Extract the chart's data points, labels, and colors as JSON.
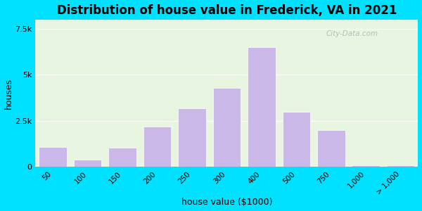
{
  "title": "Distribution of house value in Frederick, VA in 2021",
  "xlabel": "house value ($1000)",
  "ylabel": "houses",
  "bar_color": "#c9b8e8",
  "ylim": [
    0,
    8000
  ],
  "yticks": [
    0,
    2500,
    5000,
    7500
  ],
  "ytick_labels": [
    "0",
    "2.5k",
    "5k",
    "7.5k"
  ],
  "bg_outer": "#00e0ff",
  "bg_inner": "#e8f5e0",
  "title_fontsize": 12,
  "axis_label_fontsize": 9,
  "watermark": "City-Data.com",
  "x_positions": [
    0,
    1,
    2,
    3,
    4,
    5,
    6,
    7,
    8,
    9,
    10
  ],
  "bar_vals": [
    1100,
    400,
    1050,
    2200,
    3200,
    4300,
    6500,
    3000,
    2000,
    100,
    100
  ],
  "xtick_labels": [
    "50",
    "100",
    "150",
    "200",
    "250",
    "300",
    "400",
    "500",
    "750",
    "1,000",
    "> 1,000"
  ]
}
